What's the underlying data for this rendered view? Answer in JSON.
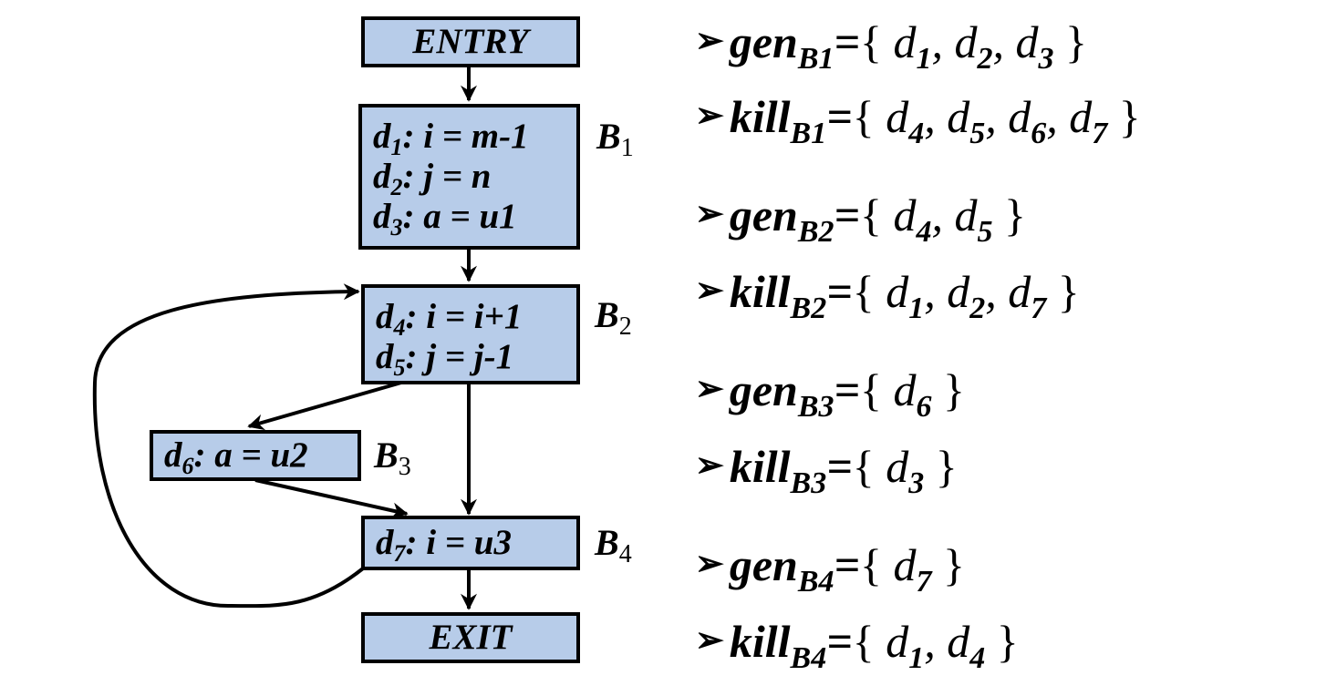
{
  "blocks": {
    "entry": "ENTRY",
    "exit": "EXIT",
    "b1": {
      "label": "B",
      "label_sub": "1",
      "lines": [
        {
          "var": "d",
          "sub": "1",
          "stmt": ": i = m-1"
        },
        {
          "var": "d",
          "sub": "2",
          "stmt": ": j = n"
        },
        {
          "var": "d",
          "sub": "3",
          "stmt": ": a = u1"
        }
      ]
    },
    "b2": {
      "label": "B",
      "label_sub": "2",
      "lines": [
        {
          "var": "d",
          "sub": "4",
          "stmt": ": i = i+1"
        },
        {
          "var": "d",
          "sub": "5",
          "stmt": ": j = j-1"
        }
      ]
    },
    "b3": {
      "label": "B",
      "label_sub": "3",
      "lines": [
        {
          "var": "d",
          "sub": "6",
          "stmt": ": a = u2"
        }
      ]
    },
    "b4": {
      "label": "B",
      "label_sub": "4",
      "lines": [
        {
          "var": "d",
          "sub": "7",
          "stmt": ": i = u3"
        }
      ]
    }
  },
  "sets": [
    {
      "name": "gen",
      "sub": "B1",
      "eq": "=",
      "open": "{",
      "close": "}",
      "items": [
        {
          "v": "d",
          "s": "1",
          "sep": ", "
        },
        {
          "v": "d",
          "s": "2",
          "sep": ", "
        },
        {
          "v": "d",
          "s": "3",
          "sep": ""
        }
      ]
    },
    {
      "name": "kill",
      "sub": "B1",
      "eq": "=",
      "open": "{",
      "close": "}",
      "items": [
        {
          "v": "d",
          "s": "4",
          "sep": ", "
        },
        {
          "v": "d",
          "s": "5",
          "sep": ", "
        },
        {
          "v": "d",
          "s": "6",
          "sep": ", "
        },
        {
          "v": "d",
          "s": "7",
          "sep": ""
        }
      ]
    },
    {
      "name": "gen",
      "sub": "B2",
      "eq": "=",
      "open": "{",
      "close": "}",
      "items": [
        {
          "v": "d",
          "s": "4",
          "sep": ", "
        },
        {
          "v": "d",
          "s": "5",
          "sep": ""
        }
      ]
    },
    {
      "name": "kill",
      "sub": "B2",
      "eq": "=",
      "open": "{",
      "close": "}",
      "items": [
        {
          "v": "d",
          "s": "1",
          "sep": ", "
        },
        {
          "v": "d",
          "s": "2",
          "sep": ", "
        },
        {
          "v": "d",
          "s": "7",
          "sep": ""
        }
      ]
    },
    {
      "name": "gen",
      "sub": "B3",
      "eq": "=",
      "open": "{",
      "close": "}",
      "items": [
        {
          "v": "d",
          "s": "6",
          "sep": ""
        }
      ]
    },
    {
      "name": "kill",
      "sub": "B3",
      "eq": "=",
      "open": "{",
      "close": "}",
      "items": [
        {
          "v": "d",
          "s": "3",
          "sep": ""
        }
      ]
    },
    {
      "name": "gen",
      "sub": "B4",
      "eq": "=",
      "open": "{",
      "close": "}",
      "items": [
        {
          "v": "d",
          "s": "7",
          "sep": ""
        }
      ]
    },
    {
      "name": "kill",
      "sub": "B4",
      "eq": "=",
      "open": "{",
      "close": "}",
      "items": [
        {
          "v": "d",
          "s": "1",
          "sep": ", "
        },
        {
          "v": "d",
          "s": "4",
          "sep": ""
        }
      ]
    }
  ],
  "bullet": "➢",
  "colors": {
    "box_fill": "#b7cce9",
    "stroke": "#000000"
  }
}
